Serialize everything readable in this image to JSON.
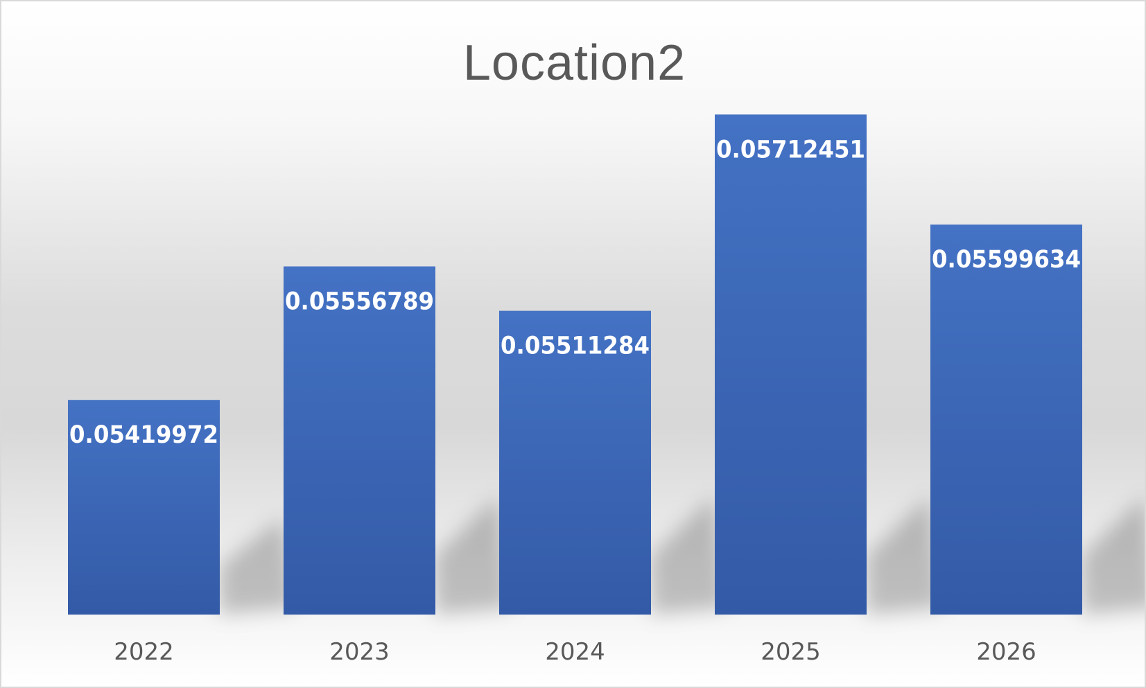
{
  "chart_data": {
    "type": "bar",
    "title": "Location2",
    "categories": [
      "2022",
      "2023",
      "2024",
      "2025",
      "2026"
    ],
    "values": [
      0.05419972,
      0.05556789,
      0.05511284,
      0.05712451,
      0.05599634
    ],
    "value_labels": [
      "0.05419972",
      "0.05556789",
      "0.05511284",
      "0.05712451",
      "0.05599634"
    ],
    "xlabel": "",
    "ylabel": "",
    "ylim": [
      0.052,
      0.058
    ],
    "grid": false,
    "legend": "none",
    "bar_color": "#4472c4",
    "bar_color_dark": "#335aa6"
  }
}
